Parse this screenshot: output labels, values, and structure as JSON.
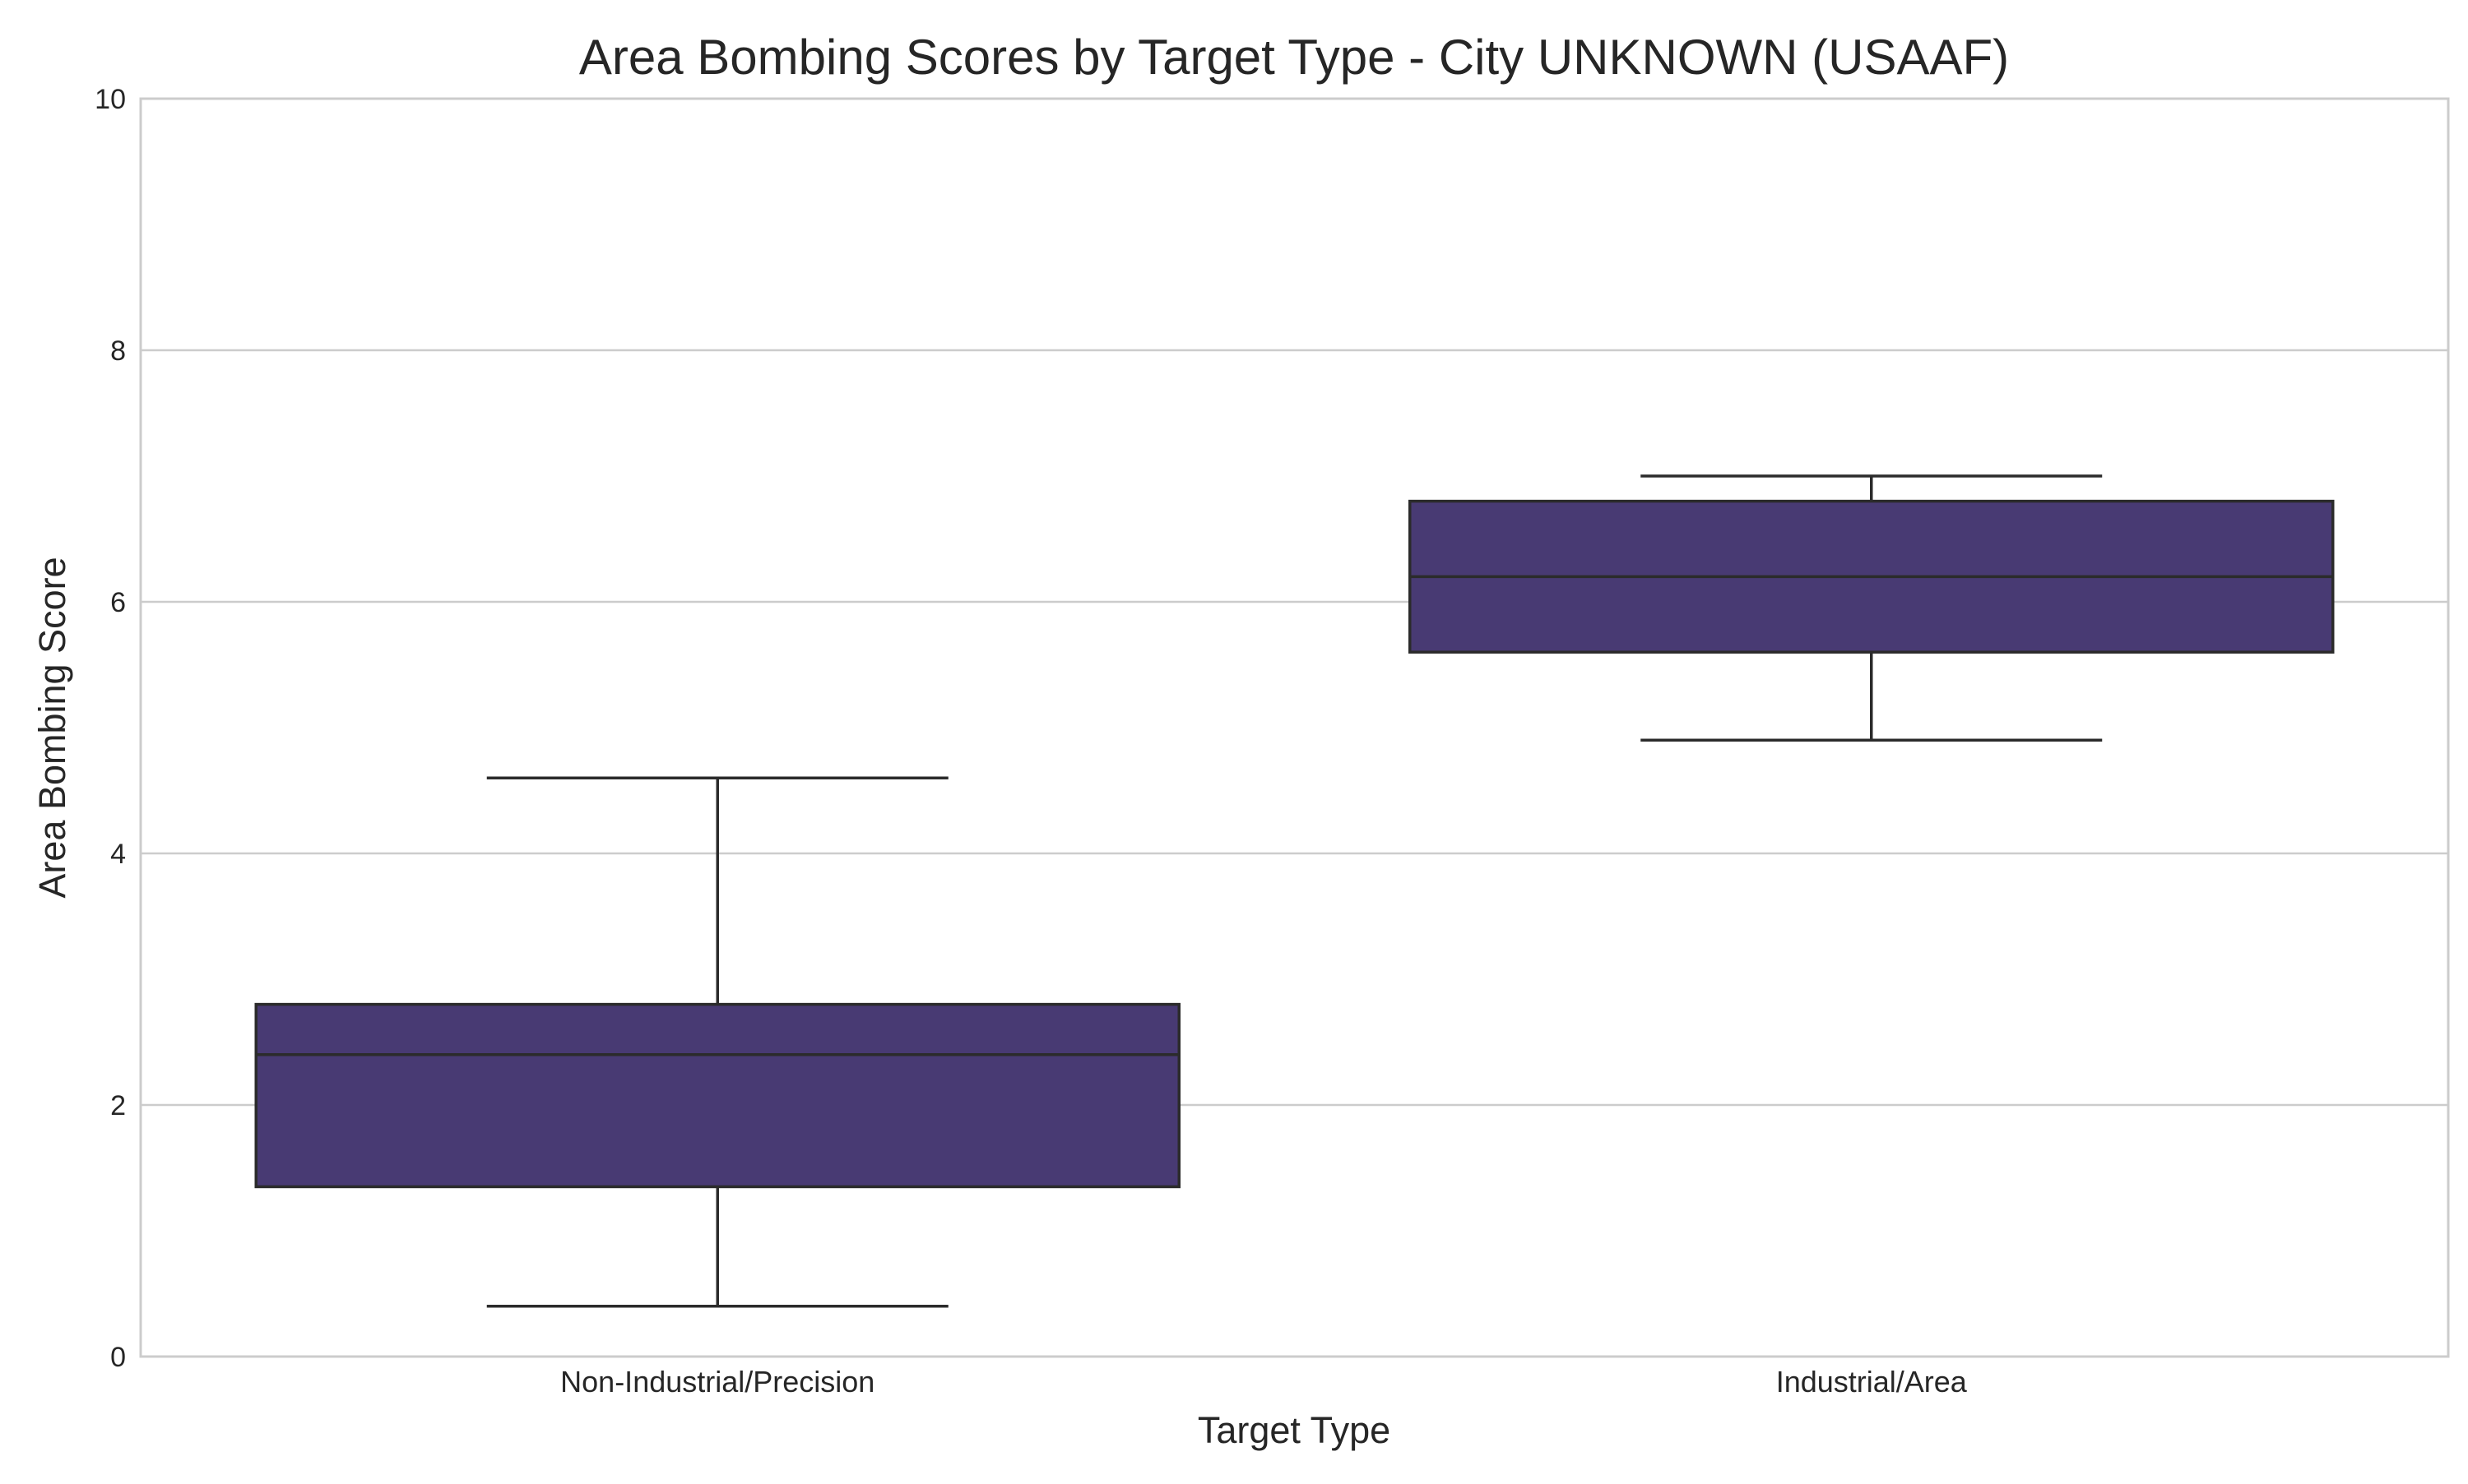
{
  "chart_data": {
    "type": "box",
    "title": "Area Bombing Scores by Target Type - City UNKNOWN (USAAF)",
    "xlabel": "Target Type",
    "ylabel": "Area Bombing Score",
    "ylim": [
      0,
      10
    ],
    "yticks": [
      0,
      2,
      4,
      6,
      8,
      10
    ],
    "grid": "horizontal",
    "categories": [
      "Non-Industrial/Precision",
      "Industrial/Area"
    ],
    "boxes": [
      {
        "category": "Non-Industrial/Precision",
        "whisker_low": 0.4,
        "q1": 1.35,
        "median": 2.4,
        "q3": 2.8,
        "whisker_high": 4.6
      },
      {
        "category": "Industrial/Area",
        "whisker_low": 4.9,
        "q1": 5.6,
        "median": 6.2,
        "q3": 6.8,
        "whisker_high": 7.0
      }
    ],
    "colors": {
      "box_fill": "#483a73",
      "line": "#2b2b2b",
      "grid": "#cccccc",
      "frame": "#cccccc"
    }
  }
}
